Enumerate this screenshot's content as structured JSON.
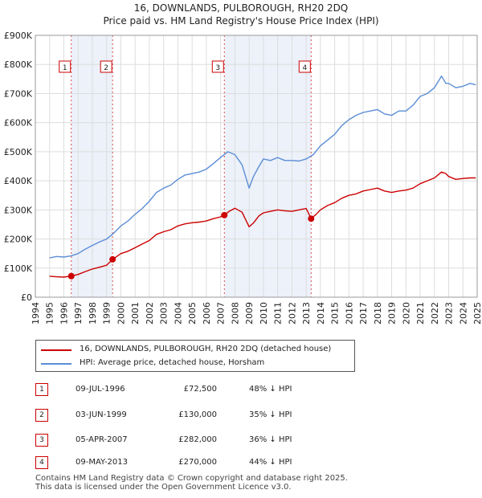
{
  "title_line1": "16, DOWNLANDS, PULBOROUGH, RH20 2DQ",
  "title_line2": "Price paid vs. HM Land Registry's House Price Index (HPI)",
  "colors": {
    "price": "#cc0000",
    "hpi": "#5b8ed6",
    "shade": "#dce6f5",
    "marker_border": "#cc0000",
    "grid": "#dddddd"
  },
  "legend": {
    "price_label": "16, DOWNLANDS, PULBOROUGH, RH20 2DQ (detached house)",
    "hpi_label": "HPI: Average price, detached house, Horsham"
  },
  "transactions": [
    {
      "num": "1",
      "date": "09-JUL-1996",
      "price": "£72,500",
      "hpi": "48% ↓ HPI"
    },
    {
      "num": "2",
      "date": "03-JUN-1999",
      "price": "£130,000",
      "hpi": "35% ↓ HPI"
    },
    {
      "num": "3",
      "date": "05-APR-2007",
      "price": "£282,000",
      "hpi": "36% ↓ HPI"
    },
    {
      "num": "4",
      "date": "09-MAY-2013",
      "price": "£270,000",
      "hpi": "44% ↓ HPI"
    }
  ],
  "footer_line1": "Contains HM Land Registry data © Crown copyright and database right 2025.",
  "footer_line2": "This data is licensed under the Open Government Licence v3.0.",
  "chart_data": {
    "type": "line",
    "title": "16, DOWNLANDS, PULBOROUGH, RH20 2DQ — Price paid vs. HM Land Registry's House Price Index (HPI)",
    "xlabel": "",
    "ylabel": "",
    "xlim": [
      1994,
      2025
    ],
    "ylim": [
      0,
      900000
    ],
    "x_ticks": [
      "1994",
      "1995",
      "1996",
      "1997",
      "1998",
      "1999",
      "2000",
      "2001",
      "2002",
      "2003",
      "2004",
      "2005",
      "2006",
      "2007",
      "2008",
      "2009",
      "2010",
      "2011",
      "2012",
      "2013",
      "2014",
      "2015",
      "2016",
      "2017",
      "2018",
      "2019",
      "2020",
      "2021",
      "2022",
      "2023",
      "2024",
      "2025"
    ],
    "y_ticks": [
      {
        "value": 0,
        "label": "£0"
      },
      {
        "value": 100000,
        "label": "£100K"
      },
      {
        "value": 200000,
        "label": "£200K"
      },
      {
        "value": 300000,
        "label": "£300K"
      },
      {
        "value": 400000,
        "label": "£400K"
      },
      {
        "value": 500000,
        "label": "£500K"
      },
      {
        "value": 600000,
        "label": "£600K"
      },
      {
        "value": 700000,
        "label": "£700K"
      },
      {
        "value": 800000,
        "label": "£800K"
      },
      {
        "value": 900000,
        "label": "£900K"
      }
    ],
    "shaded_ranges": [
      [
        1996.52,
        1999.42
      ],
      [
        2007.26,
        2013.35
      ]
    ],
    "sale_markers": [
      {
        "label": "1",
        "x": 1996.52,
        "y": 72500
      },
      {
        "label": "2",
        "x": 1999.42,
        "y": 130000
      },
      {
        "label": "3",
        "x": 2007.26,
        "y": 282000
      },
      {
        "label": "4",
        "x": 2013.35,
        "y": 270000
      }
    ],
    "series": [
      {
        "name": "HPI: Average price, detached house, Horsham",
        "color": "#5b8ed6",
        "x": [
          1995.0,
          1995.5,
          1996.0,
          1996.5,
          1997.0,
          1997.5,
          1998.0,
          1998.5,
          1999.0,
          1999.5,
          2000.0,
          2000.5,
          2001.0,
          2001.5,
          2002.0,
          2002.5,
          2003.0,
          2003.5,
          2004.0,
          2004.5,
          2005.0,
          2005.5,
          2006.0,
          2006.5,
          2007.0,
          2007.5,
          2008.0,
          2008.5,
          2009.0,
          2009.3,
          2009.7,
          2010.0,
          2010.5,
          2011.0,
          2011.5,
          2012.0,
          2012.5,
          2013.0,
          2013.5,
          2014.0,
          2014.5,
          2015.0,
          2015.5,
          2016.0,
          2016.5,
          2017.0,
          2017.5,
          2018.0,
          2018.5,
          2019.0,
          2019.5,
          2020.0,
          2020.5,
          2021.0,
          2021.5,
          2022.0,
          2022.5,
          2022.8,
          2023.0,
          2023.5,
          2024.0,
          2024.5,
          2024.9
        ],
        "y": [
          135000,
          140000,
          138000,
          142000,
          150000,
          165000,
          178000,
          190000,
          200000,
          220000,
          245000,
          262000,
          285000,
          305000,
          330000,
          360000,
          375000,
          385000,
          405000,
          420000,
          425000,
          430000,
          440000,
          460000,
          480000,
          500000,
          490000,
          455000,
          375000,
          415000,
          450000,
          475000,
          470000,
          480000,
          470000,
          470000,
          468000,
          475000,
          490000,
          520000,
          540000,
          560000,
          590000,
          610000,
          625000,
          635000,
          640000,
          645000,
          630000,
          625000,
          640000,
          640000,
          660000,
          690000,
          700000,
          720000,
          760000,
          735000,
          735000,
          720000,
          725000,
          735000,
          730000
        ]
      },
      {
        "name": "16, DOWNLANDS, PULBOROUGH, RH20 2DQ (detached house)",
        "color": "#cc0000",
        "x": [
          1995.0,
          1995.5,
          1996.0,
          1996.52,
          1997.0,
          1997.5,
          1998.0,
          1998.5,
          1999.0,
          1999.42,
          2000.0,
          2000.5,
          2001.0,
          2001.5,
          2002.0,
          2002.5,
          2003.0,
          2003.5,
          2004.0,
          2004.5,
          2005.0,
          2005.5,
          2006.0,
          2006.5,
          2007.0,
          2007.26,
          2007.6,
          2008.0,
          2008.5,
          2009.0,
          2009.3,
          2009.7,
          2010.0,
          2010.5,
          2011.0,
          2011.5,
          2012.0,
          2012.5,
          2013.0,
          2013.35,
          2013.7,
          2014.0,
          2014.5,
          2015.0,
          2015.5,
          2016.0,
          2016.5,
          2017.0,
          2017.5,
          2018.0,
          2018.5,
          2019.0,
          2019.5,
          2020.0,
          2020.5,
          2021.0,
          2021.5,
          2022.0,
          2022.5,
          2022.8,
          2023.0,
          2023.5,
          2024.0,
          2024.5,
          2024.9
        ],
        "y": [
          72000,
          70000,
          69000,
          72500,
          78000,
          88000,
          97000,
          103000,
          110000,
          130000,
          150000,
          158000,
          170000,
          183000,
          195000,
          216000,
          225000,
          232000,
          245000,
          252000,
          256000,
          258000,
          262000,
          270000,
          276000,
          282000,
          295000,
          306000,
          292000,
          242000,
          255000,
          280000,
          290000,
          295000,
          300000,
          297000,
          295000,
          300000,
          305000,
          270000,
          285000,
          300000,
          315000,
          325000,
          340000,
          350000,
          355000,
          365000,
          370000,
          375000,
          365000,
          360000,
          365000,
          368000,
          375000,
          390000,
          400000,
          410000,
          430000,
          425000,
          415000,
          405000,
          408000,
          410000,
          410000
        ]
      }
    ]
  }
}
